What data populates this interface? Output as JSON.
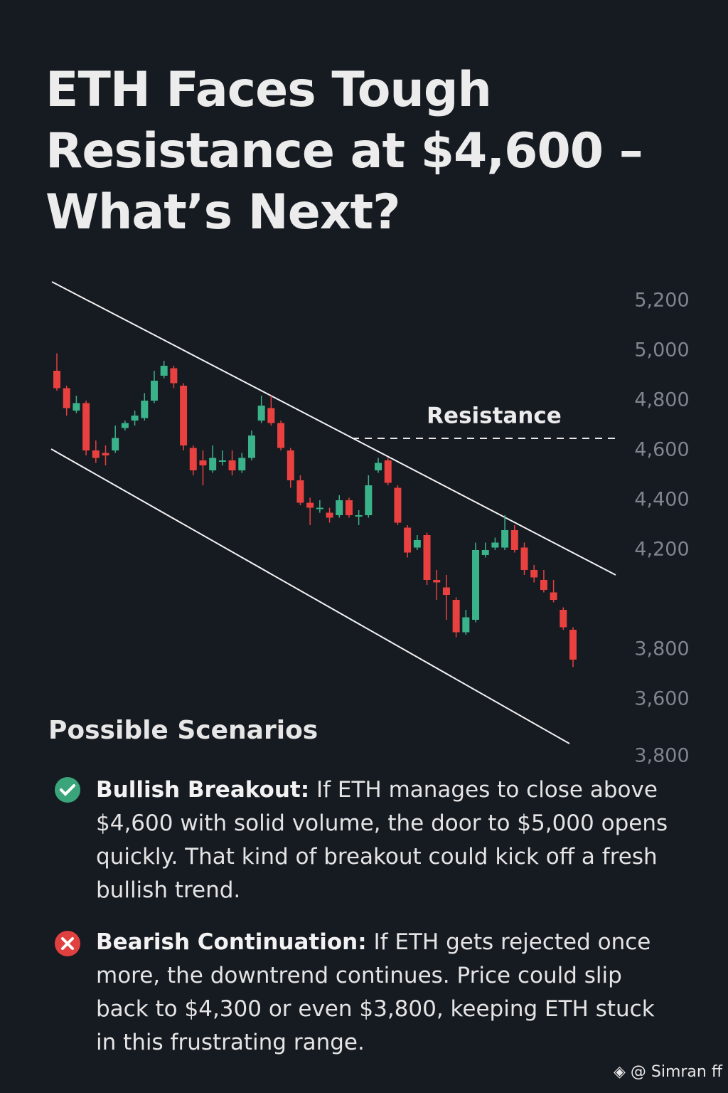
{
  "chart_data": {
    "type": "candlestick",
    "title": "ETH Faces Tough Resistance at $4,600 – What’s Next?",
    "annotation": "Resistance",
    "up_color": "#3bb38a",
    "down_color": "#e8413f",
    "ylim": [
      3600,
      5200
    ],
    "yticks": [
      {
        "value": 5200,
        "label": "5,200"
      },
      {
        "value": 5000,
        "label": "5,000"
      },
      {
        "value": 4800,
        "label": "4,800"
      },
      {
        "value": 4600,
        "label": "4,600"
      },
      {
        "value": 4400,
        "label": "4,400"
      },
      {
        "value": 4200,
        "label": "4,200"
      },
      {
        "value": 3800,
        "label": "3,800"
      },
      {
        "value": 3600,
        "label": "3,600"
      }
    ],
    "y_axis_extra_label": "3,800",
    "open": [
      4920,
      4850,
      4760,
      4790,
      4600,
      4590,
      4600,
      4690,
      4720,
      4730,
      4800,
      4900,
      4930,
      4860,
      4610,
      4560,
      4520,
      4560,
      4560,
      4520,
      4570,
      4720,
      4770,
      4710,
      4600,
      4480,
      4390,
      4370,
      4350,
      4340,
      4400,
      4340,
      4340,
      4520,
      4560,
      4450,
      4290,
      4210,
      4260,
      4080,
      4050,
      4000,
      3870,
      3920,
      4180,
      4210,
      4210,
      4280,
      4210,
      4120,
      4080,
      4030,
      3960,
      3880
    ],
    "high": [
      4990,
      4860,
      4820,
      4800,
      4640,
      4620,
      4700,
      4720,
      4760,
      4830,
      4920,
      4960,
      4940,
      4870,
      4620,
      4600,
      4620,
      4600,
      4600,
      4590,
      4680,
      4820,
      4820,
      4720,
      4610,
      4500,
      4410,
      4400,
      4370,
      4420,
      4410,
      4360,
      4500,
      4570,
      4570,
      4460,
      4300,
      4260,
      4270,
      4120,
      4100,
      4010,
      3960,
      4230,
      4230,
      4250,
      4340,
      4300,
      4230,
      4140,
      4120,
      4080,
      3970,
      3890
    ],
    "low": [
      4840,
      4740,
      4750,
      4580,
      4550,
      4540,
      4590,
      4680,
      4700,
      4720,
      4790,
      4890,
      4850,
      4600,
      4500,
      4460,
      4510,
      4540,
      4500,
      4510,
      4560,
      4710,
      4700,
      4600,
      4450,
      4380,
      4300,
      4350,
      4310,
      4330,
      4330,
      4300,
      4330,
      4510,
      4460,
      4300,
      4170,
      4200,
      4060,
      4000,
      3920,
      3850,
      3860,
      3910,
      4170,
      4200,
      4200,
      4190,
      4100,
      4070,
      4030,
      3990,
      3880,
      3730
    ],
    "close": [
      4850,
      4770,
      4790,
      4600,
      4570,
      4580,
      4650,
      4710,
      4740,
      4800,
      4880,
      4940,
      4870,
      4620,
      4520,
      4540,
      4570,
      4560,
      4520,
      4570,
      4660,
      4780,
      4710,
      4610,
      4480,
      4390,
      4370,
      4370,
      4330,
      4400,
      4340,
      4340,
      4460,
      4550,
      4470,
      4310,
      4190,
      4240,
      4080,
      4070,
      4020,
      3870,
      3930,
      4200,
      4200,
      4230,
      4280,
      4200,
      4120,
      4090,
      4040,
      4000,
      3890,
      3760
    ]
  },
  "scenarios": {
    "heading": "Possible Scenarios",
    "items": [
      {
        "label": "Bullish Breakout:",
        "text": "If ETH manages to close above $4,600 with solid volume, the door to $5,000 opens quickly. That kind of breakout could kick off a fresh bullish trend."
      },
      {
        "label": "Bearish Continuation:",
        "text": "If ETH gets rejected once more, the downtrend continues. Price could slip back to $4,300 or even $3,800, keeping ETH stuck in this frustrating range."
      }
    ]
  },
  "watermark": "@ Simran ff"
}
